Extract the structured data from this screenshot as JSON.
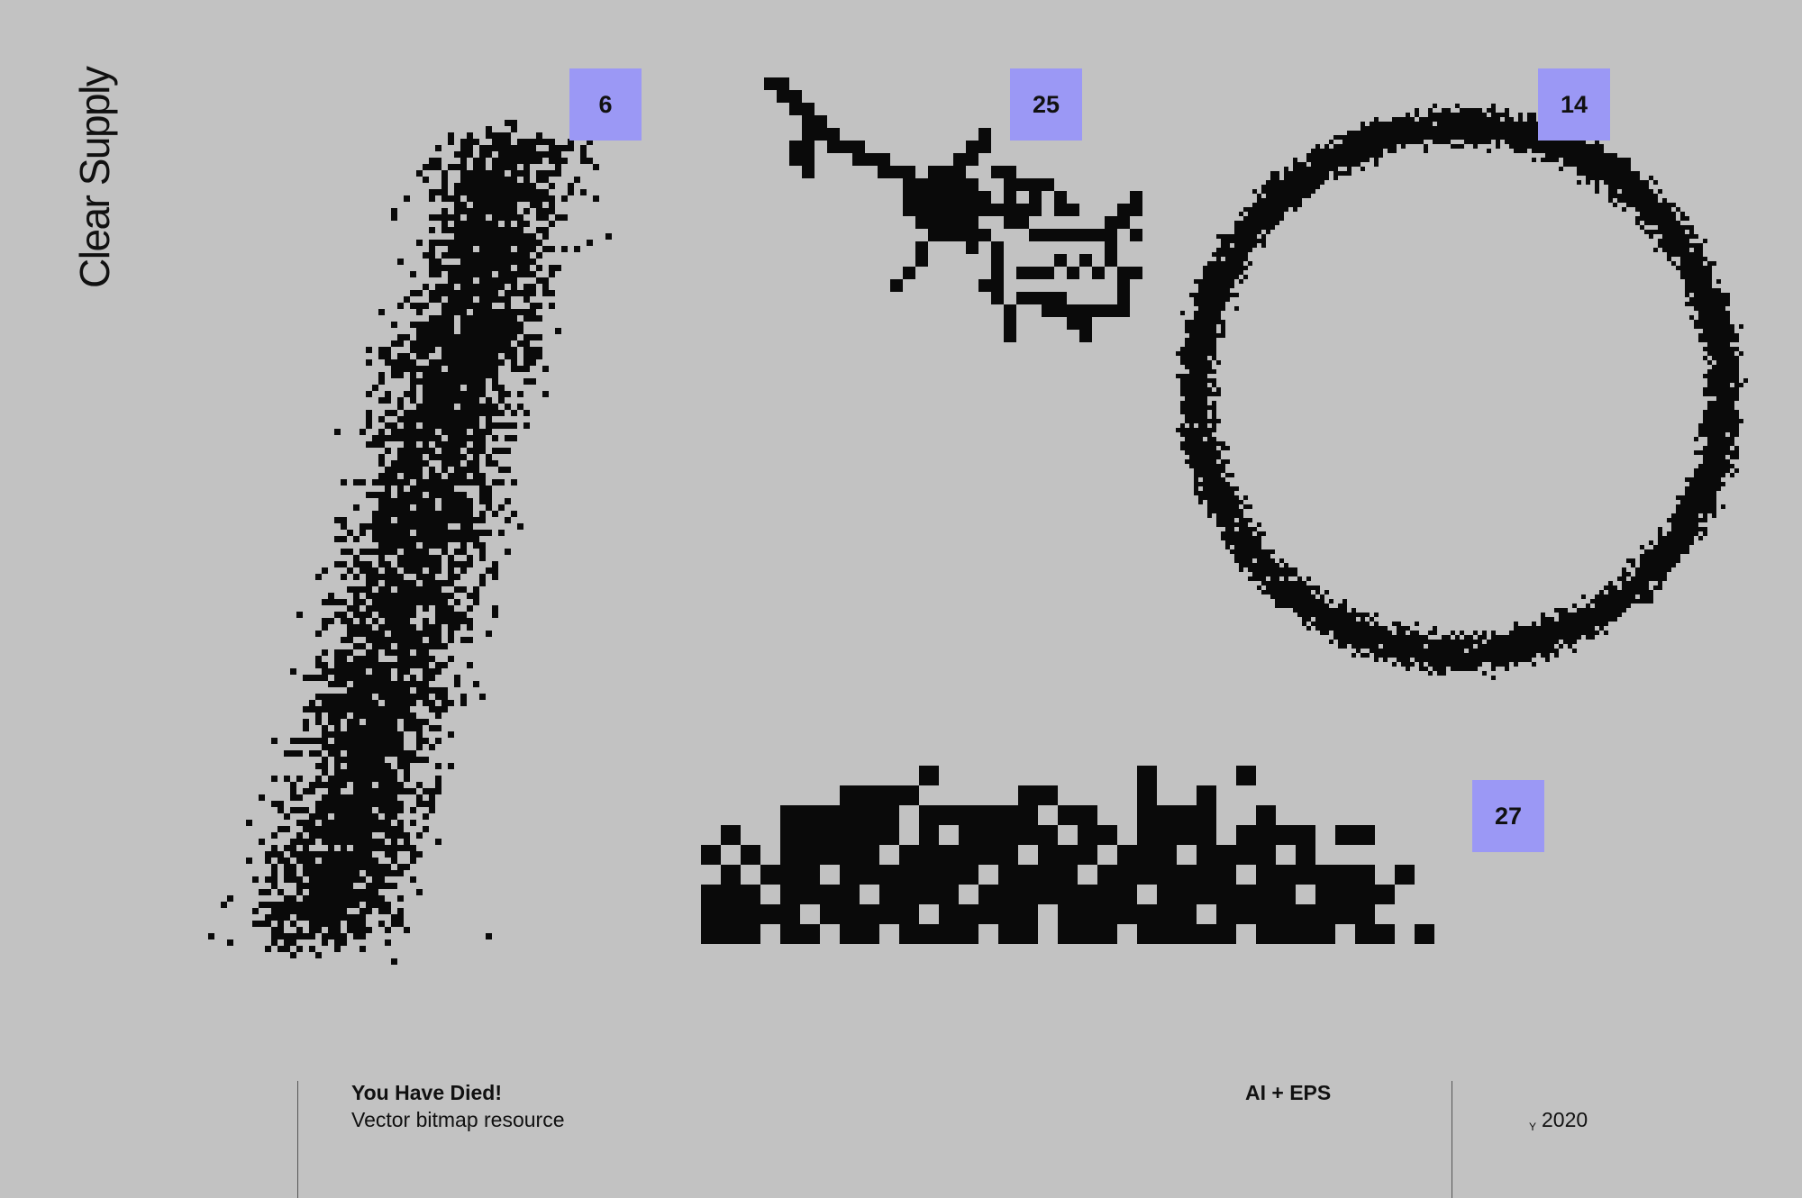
{
  "brand": "Clear Supply",
  "badges": [
    "6",
    "25",
    "14",
    "27"
  ],
  "footer": {
    "title": "You Have Died!",
    "subtitle": "Vector bitmap resource",
    "formats": "AI + EPS",
    "year_mark": "Y",
    "year": "2020"
  },
  "colors": {
    "background": "#c2c2c2",
    "badge": "#9b98f5",
    "ink": "#0a0a0a"
  }
}
